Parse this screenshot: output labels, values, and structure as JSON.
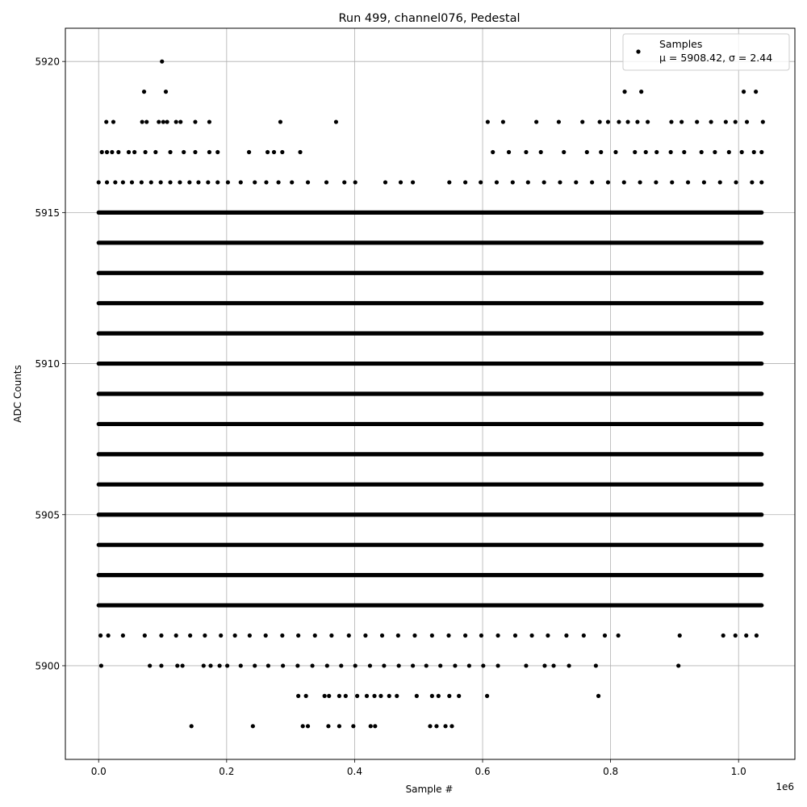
{
  "chart_data": {
    "type": "scatter",
    "title": "Run 499, channel076, Pedestal",
    "xlabel": "Sample #",
    "ylabel": "ADC Counts",
    "x_offset_label": "1e6",
    "xlim": [
      -0.052,
      1.088
    ],
    "ylim": [
      5896.9,
      5921.1
    ],
    "x_ticks": [
      0.0,
      0.2,
      0.4,
      0.6,
      0.8,
      1.0
    ],
    "x_tick_labels": [
      "0.0",
      "0.2",
      "0.4",
      "0.6",
      "0.8",
      "1.0"
    ],
    "y_ticks": [
      5900,
      5905,
      5910,
      5915,
      5920
    ],
    "y_tick_labels": [
      "5900",
      "5905",
      "5910",
      "5915",
      "5920"
    ],
    "grid": true,
    "marker_color": "#000000",
    "legend": {
      "placement": "top-right",
      "entries": [
        {
          "label": "Samples",
          "stats": "μ = 5908.42, σ = 2.44"
        }
      ]
    },
    "series": [
      {
        "name": "Samples",
        "x_range": [
          0.0,
          1.036
        ],
        "x_scale_label": "1e6",
        "dense_levels": [
          5902,
          5903,
          5904,
          5905,
          5906,
          5907,
          5908,
          5909,
          5910,
          5911,
          5912,
          5913,
          5914,
          5915
        ],
        "points": [
          [
            0.099,
            5920
          ],
          [
            0.071,
            5919
          ],
          [
            0.105,
            5919
          ],
          [
            0.822,
            5919
          ],
          [
            0.848,
            5919
          ],
          [
            1.008,
            5919
          ],
          [
            1.027,
            5919
          ],
          [
            0.012,
            5918
          ],
          [
            0.023,
            5918
          ],
          [
            0.068,
            5918
          ],
          [
            0.075,
            5918
          ],
          [
            0.094,
            5918
          ],
          [
            0.101,
            5918
          ],
          [
            0.107,
            5918
          ],
          [
            0.121,
            5918
          ],
          [
            0.128,
            5918
          ],
          [
            0.151,
            5918
          ],
          [
            0.173,
            5918
          ],
          [
            0.284,
            5918
          ],
          [
            0.371,
            5918
          ],
          [
            0.608,
            5918
          ],
          [
            0.632,
            5918
          ],
          [
            0.684,
            5918
          ],
          [
            0.719,
            5918
          ],
          [
            0.756,
            5918
          ],
          [
            0.783,
            5918
          ],
          [
            0.796,
            5918
          ],
          [
            0.813,
            5918
          ],
          [
            0.827,
            5918
          ],
          [
            0.842,
            5918
          ],
          [
            0.858,
            5918
          ],
          [
            0.895,
            5918
          ],
          [
            0.911,
            5918
          ],
          [
            0.935,
            5918
          ],
          [
            0.957,
            5918
          ],
          [
            0.98,
            5918
          ],
          [
            0.995,
            5918
          ],
          [
            1.013,
            5918
          ],
          [
            1.038,
            5918
          ],
          [
            0.005,
            5917
          ],
          [
            0.013,
            5917
          ],
          [
            0.021,
            5917
          ],
          [
            0.031,
            5917
          ],
          [
            0.047,
            5917
          ],
          [
            0.056,
            5917
          ],
          [
            0.073,
            5917
          ],
          [
            0.089,
            5917
          ],
          [
            0.112,
            5917
          ],
          [
            0.133,
            5917
          ],
          [
            0.151,
            5917
          ],
          [
            0.173,
            5917
          ],
          [
            0.186,
            5917
          ],
          [
            0.235,
            5917
          ],
          [
            0.264,
            5917
          ],
          [
            0.274,
            5917
          ],
          [
            0.287,
            5917
          ],
          [
            0.315,
            5917
          ],
          [
            0.616,
            5917
          ],
          [
            0.641,
            5917
          ],
          [
            0.668,
            5917
          ],
          [
            0.691,
            5917
          ],
          [
            0.727,
            5917
          ],
          [
            0.763,
            5917
          ],
          [
            0.785,
            5917
          ],
          [
            0.808,
            5917
          ],
          [
            0.838,
            5917
          ],
          [
            0.855,
            5917
          ],
          [
            0.872,
            5917
          ],
          [
            0.894,
            5917
          ],
          [
            0.915,
            5917
          ],
          [
            0.942,
            5917
          ],
          [
            0.963,
            5917
          ],
          [
            0.985,
            5917
          ],
          [
            1.005,
            5917
          ],
          [
            1.024,
            5917
          ],
          [
            1.036,
            5917
          ],
          [
            0.0,
            5916
          ],
          [
            0.013,
            5916
          ],
          [
            0.026,
            5916
          ],
          [
            0.038,
            5916
          ],
          [
            0.052,
            5916
          ],
          [
            0.067,
            5916
          ],
          [
            0.082,
            5916
          ],
          [
            0.097,
            5916
          ],
          [
            0.112,
            5916
          ],
          [
            0.127,
            5916
          ],
          [
            0.142,
            5916
          ],
          [
            0.156,
            5916
          ],
          [
            0.171,
            5916
          ],
          [
            0.186,
            5916
          ],
          [
            0.202,
            5916
          ],
          [
            0.222,
            5916
          ],
          [
            0.244,
            5916
          ],
          [
            0.262,
            5916
          ],
          [
            0.281,
            5916
          ],
          [
            0.302,
            5916
          ],
          [
            0.327,
            5916
          ],
          [
            0.356,
            5916
          ],
          [
            0.384,
            5916
          ],
          [
            0.401,
            5916
          ],
          [
            0.448,
            5916
          ],
          [
            0.472,
            5916
          ],
          [
            0.491,
            5916
          ],
          [
            0.548,
            5916
          ],
          [
            0.573,
            5916
          ],
          [
            0.597,
            5916
          ],
          [
            0.622,
            5916
          ],
          [
            0.647,
            5916
          ],
          [
            0.671,
            5916
          ],
          [
            0.696,
            5916
          ],
          [
            0.721,
            5916
          ],
          [
            0.746,
            5916
          ],
          [
            0.771,
            5916
          ],
          [
            0.796,
            5916
          ],
          [
            0.821,
            5916
          ],
          [
            0.846,
            5916
          ],
          [
            0.871,
            5916
          ],
          [
            0.896,
            5916
          ],
          [
            0.921,
            5916
          ],
          [
            0.946,
            5916
          ],
          [
            0.971,
            5916
          ],
          [
            0.996,
            5916
          ],
          [
            1.021,
            5916
          ],
          [
            1.036,
            5916
          ],
          [
            0.003,
            5901
          ],
          [
            0.015,
            5901
          ],
          [
            0.038,
            5901
          ],
          [
            0.072,
            5901
          ],
          [
            0.098,
            5901
          ],
          [
            0.121,
            5901
          ],
          [
            0.143,
            5901
          ],
          [
            0.166,
            5901
          ],
          [
            0.191,
            5901
          ],
          [
            0.213,
            5901
          ],
          [
            0.236,
            5901
          ],
          [
            0.261,
            5901
          ],
          [
            0.287,
            5901
          ],
          [
            0.312,
            5901
          ],
          [
            0.338,
            5901
          ],
          [
            0.364,
            5901
          ],
          [
            0.391,
            5901
          ],
          [
            0.417,
            5901
          ],
          [
            0.443,
            5901
          ],
          [
            0.468,
            5901
          ],
          [
            0.494,
            5901
          ],
          [
            0.521,
            5901
          ],
          [
            0.547,
            5901
          ],
          [
            0.573,
            5901
          ],
          [
            0.598,
            5901
          ],
          [
            0.624,
            5901
          ],
          [
            0.651,
            5901
          ],
          [
            0.677,
            5901
          ],
          [
            0.702,
            5901
          ],
          [
            0.731,
            5901
          ],
          [
            0.758,
            5901
          ],
          [
            0.791,
            5901
          ],
          [
            0.812,
            5901
          ],
          [
            0.908,
            5901
          ],
          [
            0.976,
            5901
          ],
          [
            0.995,
            5901
          ],
          [
            1.012,
            5901
          ],
          [
            1.028,
            5901
          ],
          [
            0.004,
            5900
          ],
          [
            0.08,
            5900
          ],
          [
            0.098,
            5900
          ],
          [
            0.123,
            5900
          ],
          [
            0.131,
            5900
          ],
          [
            0.164,
            5900
          ],
          [
            0.175,
            5900
          ],
          [
            0.189,
            5900
          ],
          [
            0.201,
            5900
          ],
          [
            0.222,
            5900
          ],
          [
            0.244,
            5900
          ],
          [
            0.265,
            5900
          ],
          [
            0.288,
            5900
          ],
          [
            0.311,
            5900
          ],
          [
            0.334,
            5900
          ],
          [
            0.357,
            5900
          ],
          [
            0.379,
            5900
          ],
          [
            0.401,
            5900
          ],
          [
            0.424,
            5900
          ],
          [
            0.446,
            5900
          ],
          [
            0.469,
            5900
          ],
          [
            0.491,
            5900
          ],
          [
            0.512,
            5900
          ],
          [
            0.534,
            5900
          ],
          [
            0.557,
            5900
          ],
          [
            0.579,
            5900
          ],
          [
            0.601,
            5900
          ],
          [
            0.624,
            5900
          ],
          [
            0.668,
            5900
          ],
          [
            0.697,
            5900
          ],
          [
            0.711,
            5900
          ],
          [
            0.735,
            5900
          ],
          [
            0.777,
            5900
          ],
          [
            0.906,
            5900
          ],
          [
            0.312,
            5899
          ],
          [
            0.324,
            5899
          ],
          [
            0.353,
            5899
          ],
          [
            0.36,
            5899
          ],
          [
            0.376,
            5899
          ],
          [
            0.386,
            5899
          ],
          [
            0.404,
            5899
          ],
          [
            0.419,
            5899
          ],
          [
            0.431,
            5899
          ],
          [
            0.441,
            5899
          ],
          [
            0.454,
            5899
          ],
          [
            0.466,
            5899
          ],
          [
            0.497,
            5899
          ],
          [
            0.521,
            5899
          ],
          [
            0.531,
            5899
          ],
          [
            0.548,
            5899
          ],
          [
            0.563,
            5899
          ],
          [
            0.607,
            5899
          ],
          [
            0.781,
            5899
          ],
          [
            0.145,
            5898
          ],
          [
            0.241,
            5898
          ],
          [
            0.319,
            5898
          ],
          [
            0.327,
            5898
          ],
          [
            0.359,
            5898
          ],
          [
            0.376,
            5898
          ],
          [
            0.398,
            5898
          ],
          [
            0.425,
            5898
          ],
          [
            0.432,
            5898
          ],
          [
            0.518,
            5898
          ],
          [
            0.528,
            5898
          ],
          [
            0.542,
            5898
          ],
          [
            0.552,
            5898
          ]
        ]
      }
    ]
  }
}
